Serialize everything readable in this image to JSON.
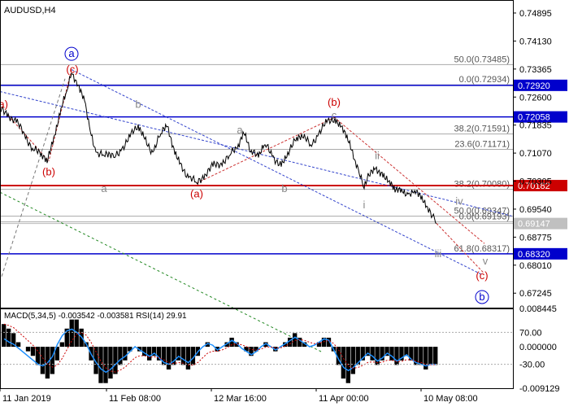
{
  "chart_data": {
    "type": "line",
    "symbol_timeframe": "AUDUSD,H4",
    "x_tick_labels": [
      "11 Jan 2019",
      "11 Feb 08:00",
      "12 Mar 16:00",
      "11 Apr 00:00",
      "10 May 08:00"
    ],
    "y_tick_labels": [
      "0.74895",
      "0.74130",
      "0.73365",
      "0.72600",
      "0.71835",
      "0.71070",
      "0.70305",
      "0.69540",
      "0.68775",
      "0.68010",
      "0.67245"
    ],
    "ylim": [
      0.6685,
      0.7525
    ],
    "price_series": {
      "name": "AUDUSD",
      "points": [
        [
          0,
          0.7225
        ],
        [
          10,
          0.7215
        ],
        [
          20,
          0.719
        ],
        [
          30,
          0.716
        ],
        [
          40,
          0.712
        ],
        [
          50,
          0.71
        ],
        [
          58,
          0.708
        ],
        [
          66,
          0.715
        ],
        [
          75,
          0.723
        ],
        [
          82,
          0.7275
        ],
        [
          88,
          0.7325
        ],
        [
          95,
          0.729
        ],
        [
          104,
          0.725
        ],
        [
          110,
          0.718
        ],
        [
          118,
          0.711
        ],
        [
          128,
          0.71
        ],
        [
          140,
          0.7095
        ],
        [
          150,
          0.712
        ],
        [
          160,
          0.715
        ],
        [
          170,
          0.7185
        ],
        [
          178,
          0.7145
        ],
        [
          188,
          0.711
        ],
        [
          198,
          0.716
        ],
        [
          206,
          0.718
        ],
        [
          214,
          0.712
        ],
        [
          222,
          0.708
        ],
        [
          232,
          0.704
        ],
        [
          242,
          0.7025
        ],
        [
          252,
          0.705
        ],
        [
          262,
          0.707
        ],
        [
          272,
          0.708
        ],
        [
          282,
          0.71
        ],
        [
          292,
          0.712
        ],
        [
          300,
          0.716
        ],
        [
          308,
          0.711
        ],
        [
          318,
          0.7095
        ],
        [
          326,
          0.713
        ],
        [
          336,
          0.71
        ],
        [
          346,
          0.707
        ],
        [
          354,
          0.711
        ],
        [
          364,
          0.714
        ],
        [
          372,
          0.715
        ],
        [
          382,
          0.713
        ],
        [
          392,
          0.716
        ],
        [
          402,
          0.719
        ],
        [
          412,
          0.7205
        ],
        [
          420,
          0.718
        ],
        [
          428,
          0.714
        ],
        [
          436,
          0.709
        ],
        [
          442,
          0.705
        ],
        [
          448,
          0.701
        ],
        [
          454,
          0.7045
        ],
        [
          462,
          0.7065
        ],
        [
          470,
          0.7055
        ],
        [
          478,
          0.703
        ],
        [
          486,
          0.7
        ],
        [
          494,
          0.701
        ],
        [
          502,
          0.6995
        ],
        [
          510,
          0.7005
        ],
        [
          518,
          0.698
        ],
        [
          526,
          0.696
        ],
        [
          532,
          0.6935
        ],
        [
          537,
          0.6915
        ]
      ]
    },
    "horizontal_levels": [
      {
        "name": "fib-50",
        "label": "50.0(0.73485)",
        "value": 0.73485,
        "color": "#aaaaaa",
        "lw": 1
      },
      {
        "name": "fib-0",
        "label": "0.0(0.72934)",
        "value": 0.72934,
        "color": "#aaaaaa",
        "lw": 1
      },
      {
        "name": "blue-72920",
        "label": "0.72920",
        "value": 0.7292,
        "color": "#0000cc",
        "lw": 1.5,
        "tag": true
      },
      {
        "name": "blue-72058",
        "label": "0.72058",
        "value": 0.72058,
        "color": "#0000cc",
        "lw": 1.5,
        "tag": true
      },
      {
        "name": "fib-38-upper",
        "label": "38.2(0.71591)",
        "value": 0.71591,
        "color": "#aaaaaa",
        "lw": 1
      },
      {
        "name": "fib-23",
        "label": "23.6(0.71171)",
        "value": 0.71171,
        "color": "#aaaaaa",
        "lw": 1
      },
      {
        "name": "fib-38-lower",
        "label": "38.2(0.70080)",
        "value": 0.7008,
        "color": "#aaaaaa",
        "lw": 1
      },
      {
        "name": "red-70182",
        "label": "0.70182",
        "value": 0.70182,
        "color": "#cc0000",
        "lw": 2,
        "tag": true
      },
      {
        "name": "fib-50-lower",
        "label": "50.0(0.69347)",
        "value": 0.69347,
        "color": "#aaaaaa",
        "lw": 1
      },
      {
        "name": "fib-0-lower",
        "label": "0.0(0.69193)",
        "value": 0.69193,
        "color": "#aaaaaa",
        "lw": 1
      },
      {
        "name": "price-69147",
        "label": "0.69147",
        "value": 0.69147,
        "color": "#bbbbbb",
        "lw": 1,
        "tag": true,
        "tag_gray": true
      },
      {
        "name": "fib-61",
        "label": "61.8(0.68317)",
        "value": 0.68317,
        "color": "#aaaaaa",
        "lw": 1
      },
      {
        "name": "blue-68320",
        "label": "0.68320",
        "value": 0.6832,
        "color": "#0000cc",
        "lw": 1.5,
        "tag": true
      }
    ],
    "wave_labels": [
      {
        "text": "(a)",
        "x": 2,
        "y": 0.724,
        "circle": false,
        "color": "#cc0000"
      },
      {
        "text": "(b)",
        "x": 60,
        "y": 0.7055,
        "circle": false,
        "color": "#cc0000"
      },
      {
        "text": "(c)",
        "x": 89,
        "y": 0.7335,
        "circle": false,
        "color": "#cc0000"
      },
      {
        "text": "a",
        "x": 88,
        "y": 0.7378,
        "circle": true,
        "color": "#0000cc"
      },
      {
        "text": "b",
        "x": 170,
        "y": 0.724,
        "circle": false,
        "color": "#888888"
      },
      {
        "text": "a",
        "x": 128,
        "y": 0.701,
        "circle": false,
        "color": "#888888"
      },
      {
        "text": "a",
        "x": 295,
        "y": 0.717,
        "circle": false,
        "color": "#888888"
      },
      {
        "text": "(a)",
        "x": 242,
        "y": 0.6995,
        "circle": false,
        "color": "#cc0000"
      },
      {
        "text": "b",
        "x": 350,
        "y": 0.701,
        "circle": false,
        "color": "#888888"
      },
      {
        "text": "c",
        "x": 411,
        "y": 0.721,
        "circle": false,
        "color": "#888888"
      },
      {
        "text": "(b)",
        "x": 411,
        "y": 0.7245,
        "circle": false,
        "color": "#cc0000"
      },
      {
        "text": "ii",
        "x": 464,
        "y": 0.71,
        "circle": false,
        "color": "#888888"
      },
      {
        "text": "i",
        "x": 448,
        "y": 0.6965,
        "circle": false,
        "color": "#888888"
      },
      {
        "text": "iv",
        "x": 565,
        "y": 0.6975,
        "circle": false,
        "color": "#888888"
      },
      {
        "text": "iii",
        "x": 539,
        "y": 0.6832,
        "circle": false,
        "color": "#888888"
      },
      {
        "text": "v",
        "x": 597,
        "y": 0.6812,
        "circle": false,
        "color": "#888888"
      },
      {
        "text": "(c)",
        "x": 593,
        "y": 0.6772,
        "circle": false,
        "color": "#cc0000"
      },
      {
        "text": "b",
        "x": 593,
        "y": 0.6714,
        "circle": true,
        "color": "#0000cc"
      }
    ],
    "trend_lines": [
      {
        "name": "blue-channel-lower",
        "color": "#3344cc",
        "dash": "3,2",
        "points": [
          [
            88,
            0.7335
          ],
          [
            593,
            0.6775
          ]
        ]
      },
      {
        "name": "blue-channel-upper",
        "color": "#3344cc",
        "dash": "3,2",
        "points": [
          [
            0,
            0.7275
          ],
          [
            300,
            0.7115
          ],
          [
            630,
            0.6935
          ]
        ]
      },
      {
        "name": "red-projection-upper",
        "color": "#cc3333",
        "dash": "3,2",
        "points": [
          [
            411,
            0.7205
          ],
          [
            596,
            0.686
          ]
        ]
      },
      {
        "name": "red-projection-lower",
        "color": "#cc3333",
        "dash": "3,2",
        "points": [
          [
            537,
            0.6915
          ],
          [
            595,
            0.678
          ]
        ]
      },
      {
        "name": "red-wave-a-b",
        "color": "#cc3333",
        "dash": "3,2",
        "points": [
          [
            242,
            0.7025
          ],
          [
            412,
            0.7205
          ]
        ]
      },
      {
        "name": "red-wave-c",
        "color": "#cc3333",
        "dash": "3,2",
        "points": [
          [
            88,
            0.7335
          ],
          [
            60,
            0.7085
          ]
        ]
      },
      {
        "name": "red-wave-b-a",
        "color": "#cc3333",
        "dash": "3,2",
        "points": [
          [
            10,
            0.721
          ],
          [
            60,
            0.7085
          ]
        ]
      },
      {
        "name": "green-trend",
        "color": "#228822",
        "dash": "3,3",
        "points": [
          [
            0,
            0.7
          ],
          [
            395,
            0.6565
          ]
        ]
      },
      {
        "name": "gray-trend",
        "color": "#777777",
        "dash": "4,3",
        "points": [
          [
            2,
            0.677
          ],
          [
            80,
            0.731
          ]
        ]
      }
    ],
    "indicator": {
      "title": "MACD(5,34,5) -0.003542 -0.003581 RSI(14) 29.91",
      "macd_tick_labels": [
        "0.008445",
        "0.000000",
        "-0.009129"
      ],
      "rsi_tick_labels": [
        "70.00",
        "-30.00"
      ],
      "macd_ylim": [
        -0.009129,
        0.008445
      ],
      "macd_hist": [
        0.005,
        0.004,
        0.003,
        0.001,
        0.0,
        -0.001,
        -0.002,
        -0.004,
        -0.006,
        -0.007,
        -0.006,
        -0.003,
        0.001,
        0.004,
        0.006,
        0.006,
        0.004,
        0.001,
        -0.003,
        -0.006,
        -0.008,
        -0.008,
        -0.007,
        -0.006,
        -0.004,
        -0.003,
        -0.001,
        0.0,
        -0.001,
        -0.002,
        -0.003,
        -0.002,
        -0.003,
        -0.004,
        -0.005,
        -0.004,
        -0.003,
        -0.004,
        -0.005,
        -0.004,
        -0.002,
        0.0,
        0.001,
        0.0,
        -0.001,
        0.0,
        0.001,
        0.002,
        0.001,
        0.0,
        -0.001,
        -0.002,
        -0.001,
        0.0,
        0.001,
        0.0,
        -0.001,
        0.0,
        0.001,
        0.002,
        0.003,
        0.002,
        0.001,
        0.0,
        0.0,
        0.001,
        0.002,
        0.002,
        -0.001,
        -0.004,
        -0.007,
        -0.008,
        -0.006,
        -0.004,
        -0.003,
        -0.002,
        -0.003,
        -0.004,
        -0.003,
        -0.002,
        -0.003,
        -0.004,
        -0.003,
        -0.002,
        -0.003,
        -0.004,
        -0.004,
        -0.005,
        -0.004,
        -0.004
      ],
      "rsi": [
        62,
        58,
        55,
        50,
        45,
        40,
        35,
        30,
        28,
        32,
        40,
        55,
        66,
        72,
        74,
        70,
        64,
        55,
        42,
        32,
        24,
        20,
        24,
        30,
        36,
        40,
        46,
        52,
        48,
        44,
        40,
        44,
        38,
        32,
        30,
        34,
        40,
        36,
        32,
        38,
        46,
        52,
        56,
        54,
        48,
        52,
        56,
        60,
        56,
        50,
        46,
        42,
        46,
        52,
        56,
        52,
        48,
        52,
        56,
        60,
        64,
        60,
        56,
        52,
        54,
        58,
        62,
        60,
        48,
        36,
        26,
        22,
        26,
        32,
        38,
        44,
        40,
        34,
        38,
        44,
        40,
        34,
        38,
        42,
        36,
        32,
        30,
        28,
        30,
        29.91
      ]
    }
  }
}
